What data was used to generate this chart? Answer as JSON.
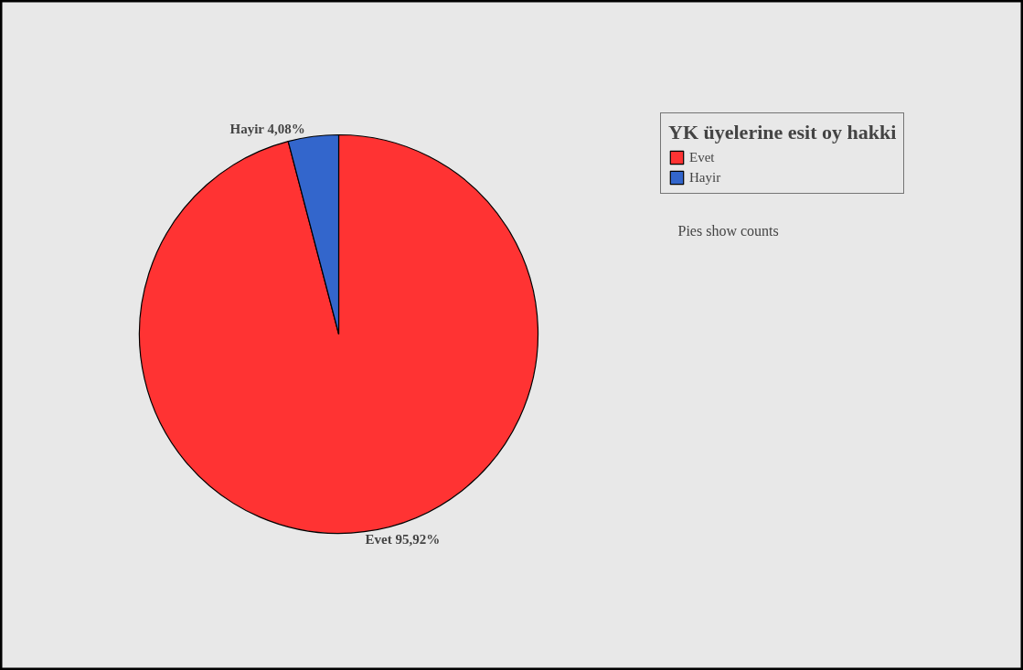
{
  "chart_data": {
    "type": "pie",
    "legend_title": "YK üyelerine esit oy hakki",
    "categories": [
      "Evet",
      "Hayir"
    ],
    "values": [
      95.92,
      4.08
    ],
    "colors": [
      "#ff3333",
      "#3366cc"
    ],
    "value_labels": [
      "95,92%",
      "4,08%"
    ],
    "legend": "top right",
    "annotations": [
      "Pies show counts"
    ]
  }
}
